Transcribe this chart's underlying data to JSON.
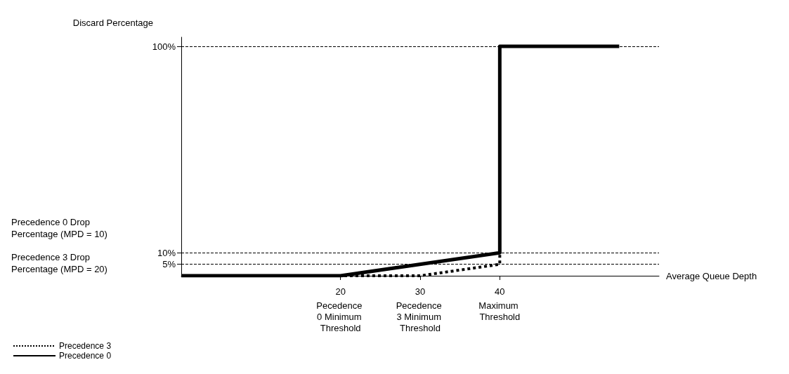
{
  "chart_data": {
    "type": "line",
    "ylabel": "Discard Percentage",
    "xlabel": "Average Queue Depth",
    "xlim": [
      0,
      60
    ],
    "xticks": [
      20,
      30,
      40
    ],
    "ylim": [
      0,
      104
    ],
    "yticks": [
      {
        "value": 5,
        "label": "5%"
      },
      {
        "value": 10,
        "label": "10%"
      },
      {
        "value": 100,
        "label": "100%"
      }
    ],
    "series": [
      {
        "name": "Precedence 3",
        "color": "#000000",
        "line_style": "dotted",
        "x": [
          0,
          30,
          40,
          40
        ],
        "values": [
          0,
          0,
          5,
          10
        ]
      },
      {
        "name": "Precedence 0",
        "color": "#000000",
        "line_style": "solid",
        "x": [
          0,
          20,
          40,
          40,
          55
        ],
        "values": [
          0,
          0,
          10,
          100,
          100
        ]
      }
    ],
    "ref_lines": [
      {
        "axis": "y",
        "value": 100,
        "line_style": "dashed",
        "color": "#000000"
      },
      {
        "axis": "y",
        "value": 10,
        "line_style": "dashed",
        "color": "#000000"
      },
      {
        "axis": "y",
        "value": 5,
        "line_style": "dashed",
        "color": "#000000"
      }
    ],
    "annotations": [
      "Precedence 0 Drop Percentage (MPD = 10)",
      "Precedence 3 Drop Percentage (MPD = 20)",
      "Pecedence 0 Minimum Threshold",
      "Pecedence 3 Minimum Threshold",
      "Maximum Threshold"
    ],
    "marker": "none",
    "grid": false,
    "legend": "bottom left"
  }
}
